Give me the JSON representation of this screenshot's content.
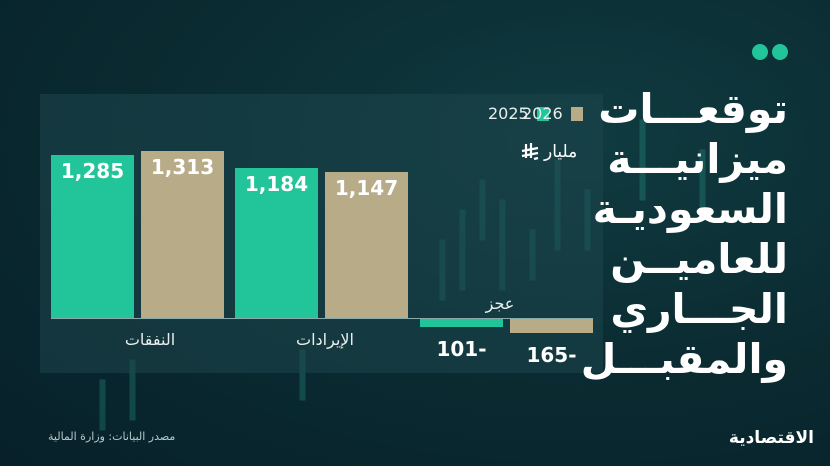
{
  "title_lines": [
    "توقعـــات",
    "ميزانيـــة",
    "السعوديـة",
    "للعاميــن",
    "الجـــاري",
    "والمقبـــل"
  ],
  "source": "مصدر البيانات: وزارة المالية",
  "logo": "الاقتصادية",
  "colors": {
    "2025": "#22c49a",
    "2026": "#b8ab88",
    "background": "#0a2a30"
  },
  "chart_data": {
    "type": "bar",
    "unit": "مليار",
    "unit_icon": "saudi-riyal-icon",
    "categories": [
      "النفقات",
      "الإيرادات",
      "عجز"
    ],
    "series": [
      {
        "name": "2025",
        "values": [
          1285,
          1184,
          -101
        ],
        "labels": [
          "1,285",
          "1,184",
          "101-"
        ]
      },
      {
        "name": "2026",
        "values": [
          1313,
          1147,
          -165
        ],
        "labels": [
          "1,313",
          "1,147",
          "165-"
        ]
      }
    ],
    "grid": false,
    "legend": "top-right"
  }
}
